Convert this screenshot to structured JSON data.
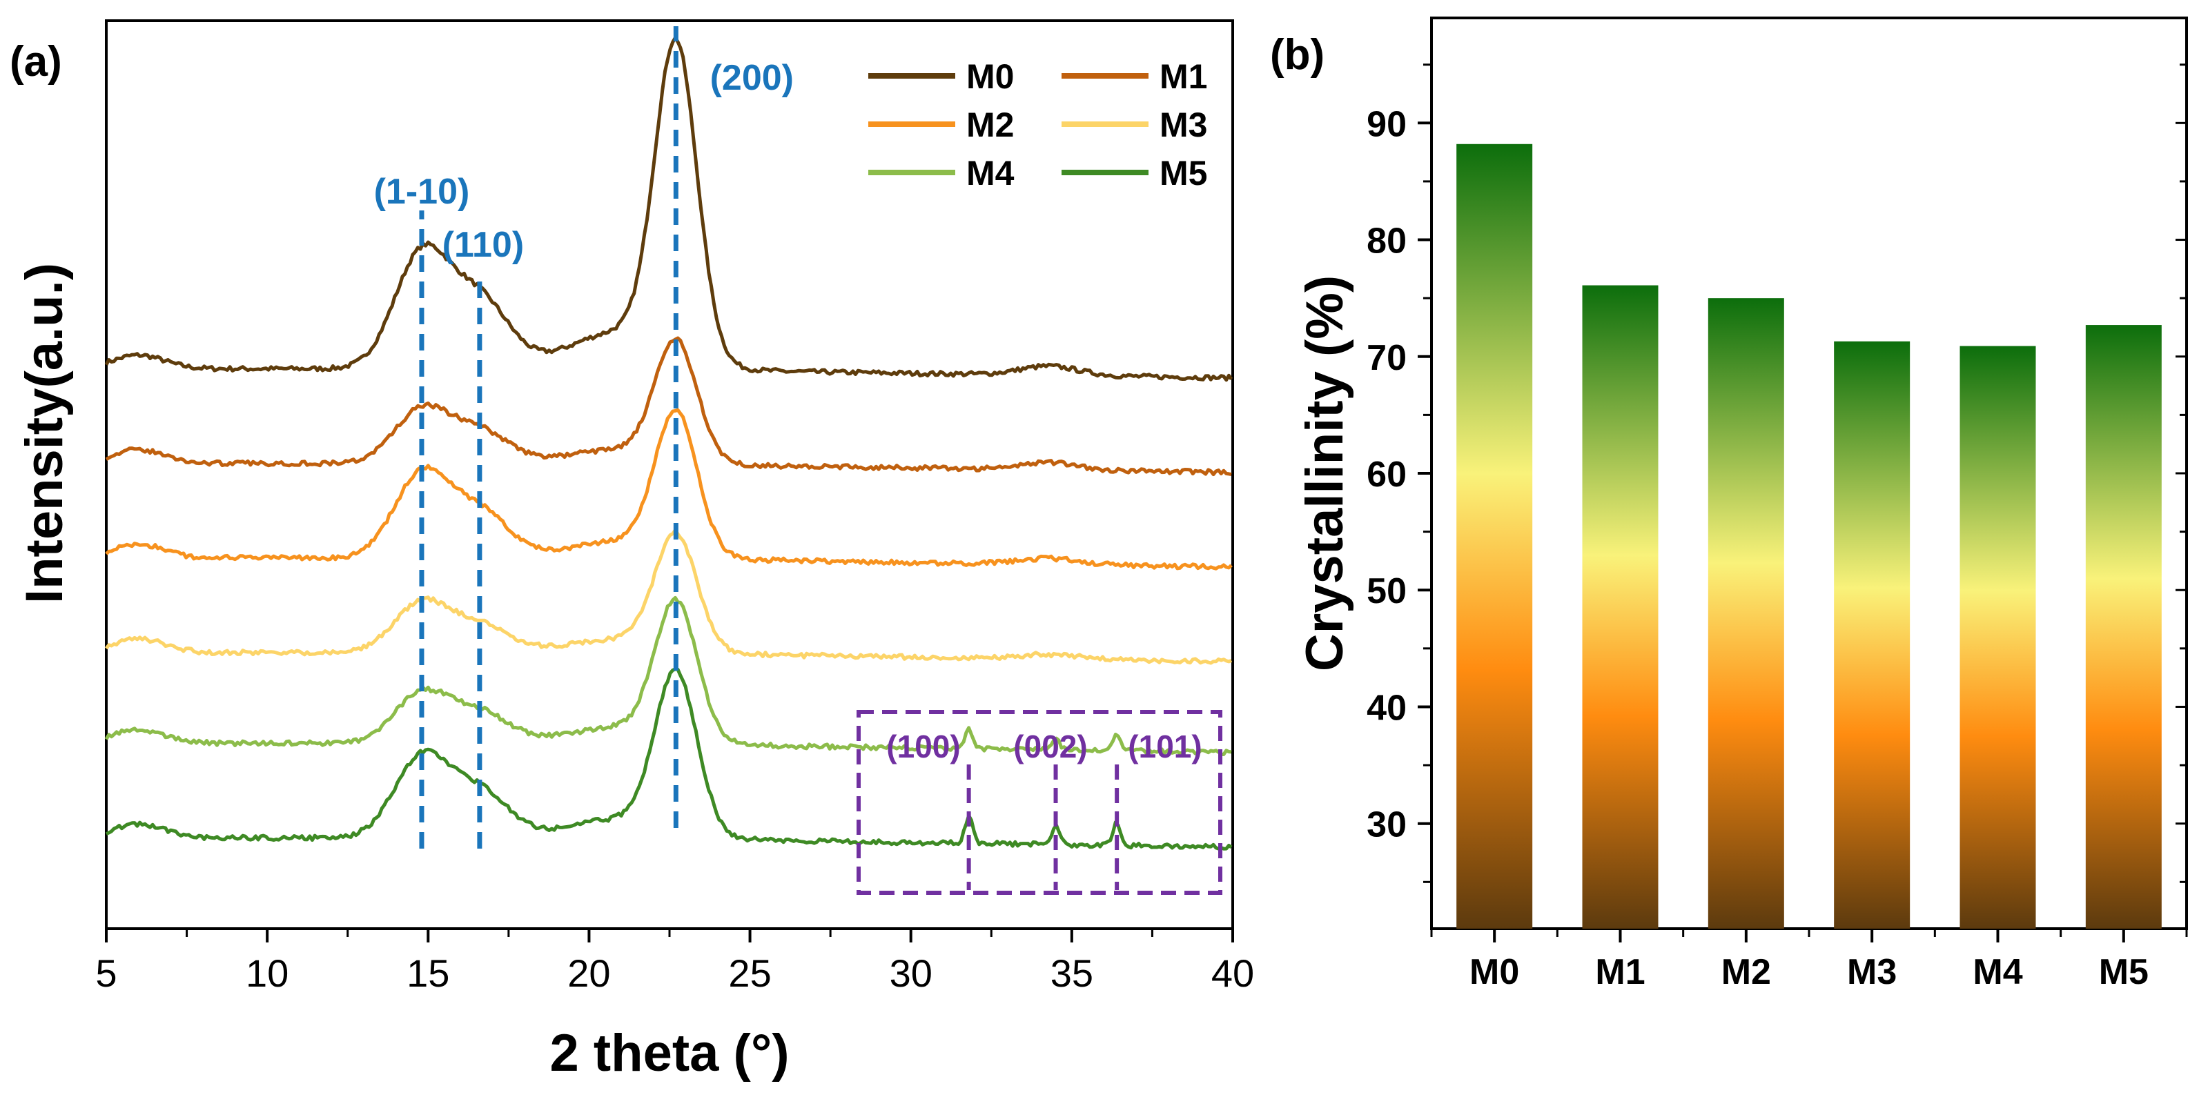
{
  "chart_data": [
    {
      "type": "line",
      "panel_label": "(a)",
      "xlabel": "2 theta (°)",
      "ylabel": "Intensity(a.u.)",
      "xlim": [
        5,
        40
      ],
      "x_ticks": [
        "5",
        "10",
        "15",
        "20",
        "25",
        "30",
        "35",
        "40"
      ],
      "y_ticks_shown": false,
      "series": [
        {
          "name": "M0",
          "color": "#5e3c0c",
          "baseline": 0.58,
          "p1": 0.15,
          "p2": 0.09,
          "p3": 0.41,
          "p4": 0.012,
          "sharp": 0
        },
        {
          "name": "M1",
          "color": "#c0600e",
          "baseline": 0.455,
          "p1": 0.07,
          "p2": 0.042,
          "p3": 0.155,
          "p4": 0.01,
          "sharp": 0
        },
        {
          "name": "M2",
          "color": "#f7921e",
          "baseline": 0.33,
          "p1": 0.11,
          "p2": 0.06,
          "p3": 0.185,
          "p4": 0.008,
          "sharp": 0
        },
        {
          "name": "M3",
          "color": "#fcd468",
          "baseline": 0.205,
          "p1": 0.065,
          "p2": 0.035,
          "p3": 0.15,
          "p4": 0.006,
          "sharp": 0
        },
        {
          "name": "M4",
          "color": "#8cbc4a",
          "baseline": 0.085,
          "p1": 0.065,
          "p2": 0.04,
          "p3": 0.18,
          "p4": 0.0,
          "sharp": 0.025
        },
        {
          "name": "M5",
          "color": "#3e8a24",
          "baseline": -0.04,
          "p1": 0.105,
          "p2": 0.06,
          "p3": 0.21,
          "p4": 0.0,
          "sharp": 0.035
        }
      ],
      "plane_annotations": [
        {
          "label": "(1-10)",
          "two_theta": 14.8
        },
        {
          "label": "(110)",
          "two_theta": 16.6
        },
        {
          "label": "(200)",
          "two_theta": 22.7
        }
      ],
      "inset_annotations": [
        {
          "label": "(100)",
          "two_theta": 31.8
        },
        {
          "label": "(002)",
          "two_theta": 34.5
        },
        {
          "label": "(101)",
          "two_theta": 36.4
        }
      ],
      "annotation_color": "#1a75bb",
      "inset_color": "#7030a0"
    },
    {
      "type": "bar",
      "panel_label": "(b)",
      "xlabel": "",
      "ylabel": "Crystallinity (%)",
      "ylim": [
        21,
        99
      ],
      "y_ticks": [
        30,
        40,
        50,
        60,
        70,
        80,
        90
      ],
      "categories": [
        "M0",
        "M1",
        "M2",
        "M3",
        "M4",
        "M5"
      ],
      "values": [
        88.2,
        76.1,
        75.0,
        71.3,
        70.9,
        72.7
      ],
      "gradient": {
        "bottom": "#5c3a0e",
        "lower": "#ff8c10",
        "middle": "#f9f27a",
        "top": "#0c6e0c"
      }
    }
  ]
}
